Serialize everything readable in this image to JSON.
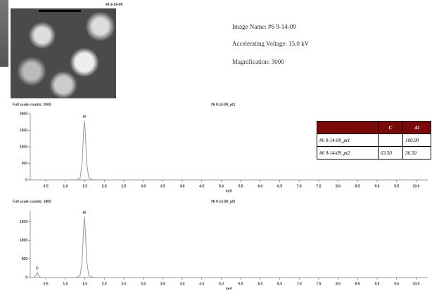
{
  "image": {
    "label": "#6 9-14-09"
  },
  "info": {
    "image_name": "Image Name: #6 9-14-09",
    "voltage": "Accelerating Voltage: 15.0 kV",
    "magnification": "Magnification: 3000"
  },
  "table": {
    "header": [
      "C",
      "Al"
    ],
    "rows": [
      [
        "#6 9-14-09_pt1",
        "",
        "100.00"
      ],
      [
        "#6 9-14-09_pt2",
        "63.50",
        "36.50"
      ]
    ]
  },
  "chart_data": [
    {
      "type": "line",
      "title": "#6 9-14-09_pt1",
      "subtitle": "Full scale counts: 2000",
      "x_label": "keV",
      "color": "#999",
      "x": [
        0.1,
        0.5,
        1.0,
        1.3,
        1.38,
        1.43,
        1.47,
        1.49,
        1.51,
        1.55,
        1.6,
        1.7,
        2.0,
        5.0,
        10.3
      ],
      "values": [
        0,
        0,
        0,
        5,
        60,
        500,
        1500,
        1800,
        1500,
        500,
        60,
        5,
        0,
        0,
        0
      ],
      "annotations": [
        {
          "text": "Al",
          "x": 1.49,
          "y": 1800
        }
      ],
      "xlim": [
        0.1,
        10.3
      ],
      "ylim": [
        0,
        2000
      ],
      "yticks": [
        0,
        500,
        1000,
        1500,
        2000
      ],
      "xticks": [
        0.5,
        {
          "value": 1,
          "label": "1.0"
        },
        1.5,
        {
          "value": 2,
          "label": "2.0"
        },
        2.5,
        {
          "value": 3,
          "label": "3.0"
        },
        3.5,
        {
          "value": 4,
          "label": "4.0"
        },
        4.5,
        {
          "value": 5,
          "label": "5.0"
        },
        5.5,
        {
          "value": 6,
          "label": "6.0"
        },
        6.5,
        {
          "value": 7,
          "label": "7.0"
        },
        7.5,
        {
          "value": 8,
          "label": "8.0"
        },
        8.5,
        {
          "value": 9,
          "label": "9.0"
        },
        9.5,
        {
          "value": 10,
          "label": "10.0"
        }
      ]
    },
    {
      "type": "line",
      "title": "#6 9-14-09_pt2",
      "subtitle": "Full scale counts: 1800",
      "x_label": "keV",
      "color": "#999",
      "x": [
        0.1,
        0.2,
        0.25,
        0.28,
        0.31,
        0.36,
        0.5,
        1.0,
        1.3,
        1.38,
        1.43,
        1.47,
        1.49,
        1.51,
        1.55,
        1.6,
        1.7,
        2.0,
        5.0,
        10.3
      ],
      "values": [
        0,
        5,
        60,
        150,
        60,
        5,
        0,
        0,
        5,
        60,
        450,
        1350,
        1650,
        1350,
        450,
        60,
        5,
        0,
        0,
        0
      ],
      "annotations": [
        {
          "text": "C",
          "x": 0.28,
          "y": 150
        },
        {
          "text": "Al",
          "x": 1.49,
          "y": 1650
        }
      ],
      "xlim": [
        0.1,
        10.3
      ],
      "ylim": [
        0,
        1800
      ],
      "yticks": [
        0,
        500,
        1000,
        1500
      ],
      "xticks": [
        0.5,
        {
          "value": 1,
          "label": "1.0"
        },
        1.5,
        {
          "value": 2,
          "label": "2.0"
        },
        2.5,
        {
          "value": 3,
          "label": "3.0"
        },
        3.5,
        {
          "value": 4,
          "label": "4.0"
        },
        4.5,
        {
          "value": 5,
          "label": "5.0"
        },
        5.5,
        {
          "value": 6,
          "label": "6.0"
        },
        6.5,
        {
          "value": 7,
          "label": "7.0"
        },
        7.5,
        {
          "value": 8,
          "label": "8.0"
        },
        8.5,
        {
          "value": 9,
          "label": "9.0"
        },
        9.5,
        {
          "value": 10,
          "label": "10.0"
        }
      ]
    }
  ]
}
